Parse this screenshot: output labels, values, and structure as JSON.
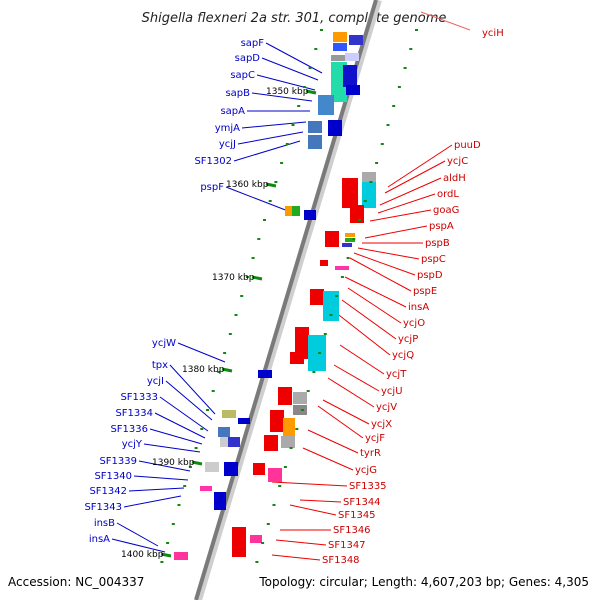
{
  "title": "Shigella flexneri 2a str. 301, complete genome",
  "footer": {
    "accession": "Accession: NC_004337",
    "summary": "Topology: circular; Length: 4,607,203 bp; Genes: 4,305"
  },
  "position_labels": [
    "1350 kbp",
    "1360 kbp",
    "1370 kbp",
    "1380 kbp",
    "1390 kbp",
    "1400 kbp"
  ],
  "left_genes": [
    "sapF",
    "sapD",
    "sapC",
    "sapB",
    "sapA",
    "ymjA",
    "ycjJ",
    "SF1302",
    "pspF",
    "ycjW",
    "tpx",
    "ycjI",
    "SF1333",
    "SF1334",
    "SF1336",
    "ycjY",
    "SF1339",
    "SF1340",
    "SF1342",
    "SF1343",
    "insB",
    "insA"
  ],
  "right_genes": [
    "yciH",
    "puuD",
    "ycjC",
    "aldH",
    "ordL",
    "goaG",
    "pspA",
    "pspB",
    "pspC",
    "pspD",
    "pspE",
    "insA",
    "ycjO",
    "ycjP",
    "ycjQ",
    "ycjT",
    "ycjU",
    "ycjV",
    "ycjX",
    "ycjF",
    "tyrR",
    "ycjG",
    "SF1335",
    "SF1344",
    "SF1345",
    "SF1346",
    "SF1347",
    "SF1348"
  ],
  "colors": {
    "forward_strand": "#0000dd",
    "reverse_strand": "#ee0000",
    "backbone": "#999999",
    "ticks": "#118811",
    "left_label": "#0000c8",
    "right_label": "#cc0000"
  }
}
